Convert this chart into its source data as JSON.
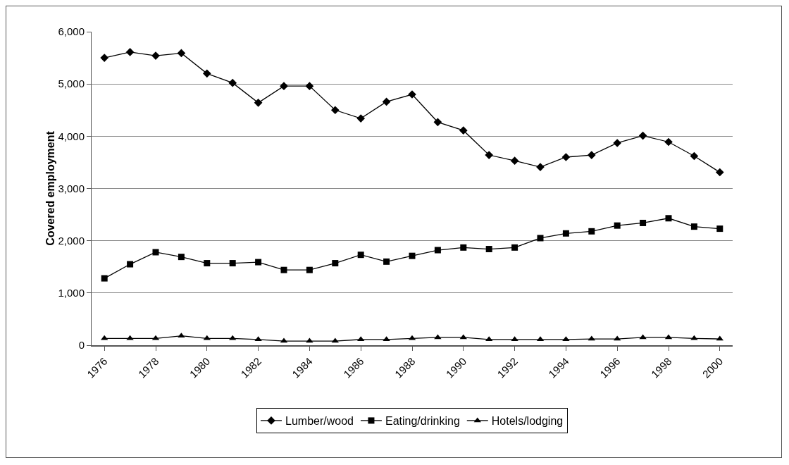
{
  "chart_data": {
    "type": "line",
    "ylabel": "Covered employment",
    "x": [
      1976,
      1977,
      1978,
      1979,
      1980,
      1981,
      1982,
      1983,
      1984,
      1985,
      1986,
      1987,
      1988,
      1989,
      1990,
      1991,
      1992,
      1993,
      1994,
      1995,
      1996,
      1997,
      1998,
      1999,
      2000
    ],
    "series": [
      {
        "name": "Lumber/wood",
        "color": "#000000",
        "marker": "diamond",
        "values": [
          5500,
          5610,
          5540,
          5590,
          5200,
          5020,
          4640,
          4960,
          4960,
          4500,
          4340,
          4660,
          4800,
          4270,
          4110,
          3640,
          3530,
          3410,
          3600,
          3640,
          3870,
          4010,
          3890,
          3620,
          3310
        ]
      },
      {
        "name": "Eating/drinking",
        "color": "#000000",
        "marker": "square",
        "values": [
          1280,
          1550,
          1780,
          1690,
          1570,
          1570,
          1590,
          1440,
          1440,
          1570,
          1730,
          1600,
          1710,
          1820,
          1870,
          1840,
          1870,
          2050,
          2140,
          2180,
          2290,
          2340,
          2430,
          2270,
          2230
        ]
      },
      {
        "name": "Hotels/lodging",
        "color": "#000000",
        "marker": "triangle",
        "values": [
          130,
          130,
          130,
          180,
          130,
          130,
          110,
          80,
          80,
          80,
          110,
          110,
          130,
          150,
          150,
          110,
          110,
          110,
          110,
          120,
          120,
          150,
          150,
          130,
          120
        ]
      }
    ],
    "xlim": [
      1975.5,
      2000.5
    ],
    "xticks": [
      1976,
      1978,
      1980,
      1982,
      1984,
      1986,
      1988,
      1990,
      1992,
      1994,
      1996,
      1998,
      2000
    ],
    "ylim": [
      0,
      6000
    ],
    "yticks": [
      {
        "value": 0,
        "label": "0"
      },
      {
        "value": 1000,
        "label": "1,000"
      },
      {
        "value": 2000,
        "label": "2,000"
      },
      {
        "value": 3000,
        "label": "3,000"
      },
      {
        "value": 4000,
        "label": "4,000"
      },
      {
        "value": 5000,
        "label": "5,000"
      },
      {
        "value": 6000,
        "label": "6,000"
      }
    ],
    "grid": "y",
    "legend": "bottom",
    "line_style": "solid"
  }
}
